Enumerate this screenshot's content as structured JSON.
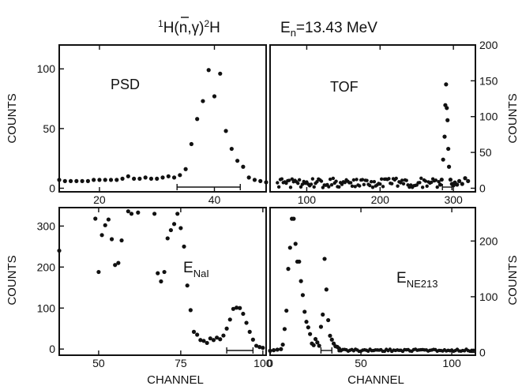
{
  "title": {
    "reaction_prefix": "1",
    "reaction_a": "H(",
    "reaction_n": "n",
    "reaction_b": ",γ)",
    "reaction_sup2": "2",
    "reaction_c": "H",
    "energy_E": "E",
    "energy_sub": "n",
    "energy_value": "=13.43 MeV"
  },
  "ylabel_left": "COUNTS",
  "ylabel_right": "COUNTS",
  "xlabel": "CHANNEL",
  "chart_data": [
    {
      "type": "scatter",
      "name": "PSD",
      "label": "PSD",
      "xlim": [
        13,
        49
      ],
      "ylim": [
        -3,
        120
      ],
      "x_ticks": [
        20,
        40
      ],
      "x_tick_labels": [
        "20",
        "40"
      ],
      "y_ticks": [
        0,
        50,
        100
      ],
      "y_tick_labels": [
        "0",
        "50",
        "100"
      ],
      "y_axis_side": "left",
      "window": [
        33.5,
        44.5
      ],
      "x": [
        13,
        14,
        15,
        16,
        17,
        18,
        19,
        20,
        21,
        22,
        23,
        24,
        25,
        26,
        27,
        28,
        29,
        30,
        31,
        32,
        33,
        34,
        35,
        36,
        37,
        38,
        39,
        40,
        41,
        42,
        43,
        44,
        45,
        46,
        47,
        48,
        49
      ],
      "y": [
        7,
        6,
        6,
        6,
        6,
        6,
        7,
        7,
        7,
        7,
        7,
        8,
        10,
        8,
        8,
        9,
        8,
        8,
        9,
        10,
        9,
        11,
        16,
        37,
        58,
        73,
        99,
        77,
        96,
        48,
        33,
        23,
        18,
        9,
        7,
        6,
        5
      ]
    },
    {
      "type": "scatter",
      "name": "TOF",
      "label": "TOF",
      "xlim": [
        50,
        330
      ],
      "ylim": [
        -5,
        200
      ],
      "x_ticks": [
        100,
        200,
        300
      ],
      "x_tick_labels": [
        "100",
        "200",
        "300"
      ],
      "y_ticks": [
        0,
        50,
        100,
        150,
        200
      ],
      "y_tick_labels": [
        "0",
        "50",
        "100",
        "150",
        "200"
      ],
      "y_axis_side": "right",
      "window": [
        285,
        298
      ],
      "x": [
        282,
        284,
        286,
        288,
        289,
        290,
        291,
        292,
        293,
        294,
        296,
        298,
        300,
        302,
        305,
        308,
        312,
        316,
        320
      ],
      "y": [
        5,
        12,
        40,
        72,
        116,
        145,
        112,
        95,
        55,
        30,
        12,
        6,
        4,
        8,
        5,
        10,
        6,
        14,
        10
      ],
      "baseline": {
        "x_start": 60,
        "x_end": 280,
        "step": 2,
        "min": 1,
        "max": 14
      }
    },
    {
      "type": "scatter",
      "name": "E_NaI",
      "label_main": "E",
      "label_sub": "NaI",
      "xlim": [
        38,
        101
      ],
      "ylim": [
        -15,
        345
      ],
      "x_ticks": [
        50,
        75,
        100
      ],
      "x_tick_labels": [
        "50",
        "75",
        "100"
      ],
      "y_ticks": [
        0,
        100,
        200,
        300
      ],
      "y_tick_labels": [
        "0",
        "100",
        "200",
        "300"
      ],
      "y_axis_side": "left",
      "window": [
        89,
        97
      ],
      "x": [
        38,
        49,
        50,
        51,
        52,
        53,
        54,
        55,
        56,
        57,
        59,
        60,
        62,
        67,
        68,
        69,
        70,
        71,
        72,
        73,
        74,
        75,
        76,
        77,
        78,
        79,
        80,
        81,
        82,
        83,
        84,
        85,
        86,
        87,
        88,
        89,
        90,
        91,
        92,
        93,
        94,
        95,
        96,
        97,
        98,
        99,
        100
      ],
      "y": [
        240,
        318,
        188,
        278,
        302,
        316,
        268,
        205,
        210,
        265,
        336,
        330,
        333,
        330,
        185,
        165,
        188,
        270,
        290,
        305,
        330,
        295,
        250,
        155,
        95,
        42,
        35,
        22,
        20,
        15,
        26,
        22,
        28,
        24,
        33,
        50,
        72,
        98,
        101,
        100,
        86,
        64,
        42,
        23,
        8,
        5,
        3
      ]
    },
    {
      "type": "scatter",
      "name": "E_NE213",
      "label_main": "E",
      "label_sub": "NE213",
      "xlim": [
        0,
        113
      ],
      "ylim": [
        -5,
        260
      ],
      "x_ticks": [
        0,
        50,
        100
      ],
      "x_tick_labels": [
        "0",
        "50",
        "100"
      ],
      "y_ticks": [
        0,
        100,
        200
      ],
      "y_tick_labels": [
        "0",
        "100",
        "200"
      ],
      "y_axis_side": "right",
      "window": [
        28,
        34
      ],
      "x": [
        0,
        2,
        4,
        6,
        7,
        8,
        9,
        10,
        11,
        12,
        13,
        14,
        15,
        16,
        17,
        18,
        19,
        20,
        21,
        22,
        23,
        24,
        25,
        26,
        27,
        28,
        29,
        30,
        31,
        32,
        33,
        34,
        35,
        36,
        37,
        38
      ],
      "y": [
        3,
        4,
        5,
        6,
        14,
        42,
        75,
        150,
        188,
        240,
        240,
        195,
        163,
        163,
        128,
        103,
        73,
        55,
        45,
        33,
        16,
        13,
        24,
        18,
        12,
        46,
        68,
        168,
        113,
        58,
        30,
        23,
        16,
        11,
        10,
        7
      ],
      "baseline": {
        "x_start": 38,
        "x_end": 112,
        "step": 1,
        "min": 2,
        "max": 6
      }
    }
  ]
}
